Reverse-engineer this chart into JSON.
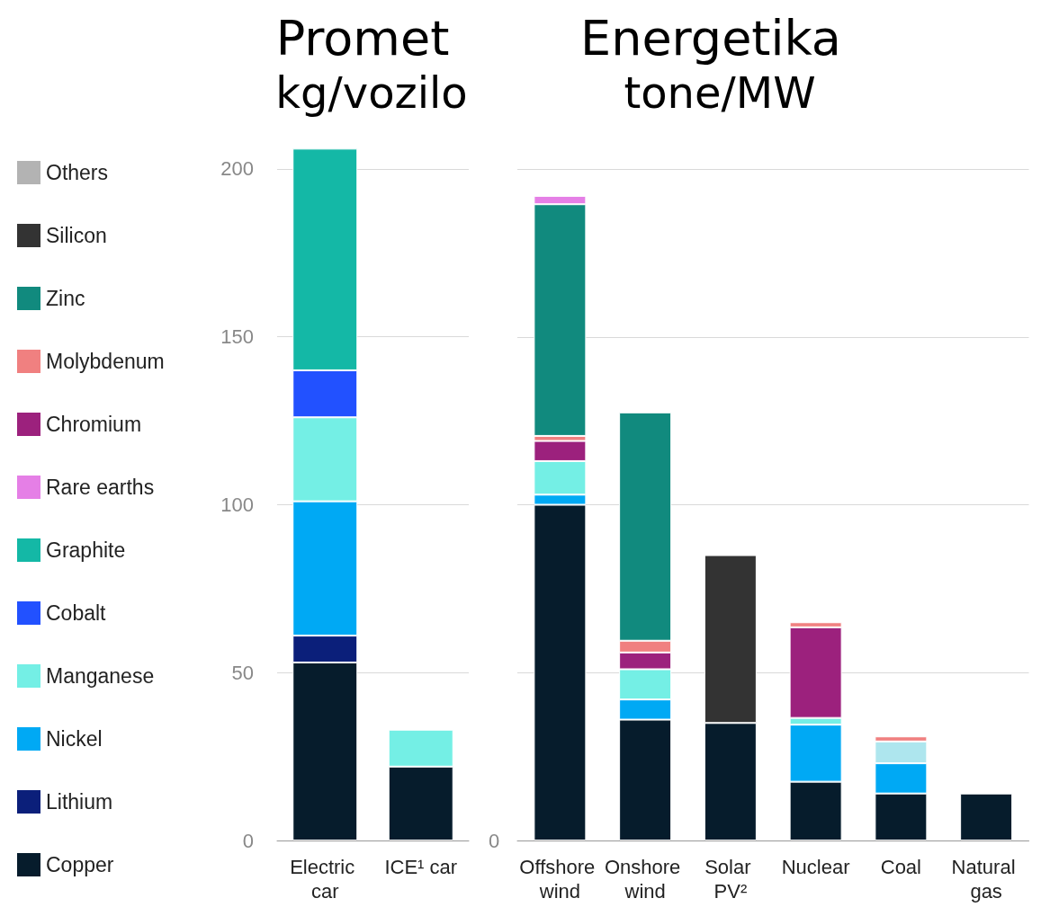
{
  "chart_data": [
    {
      "type": "bar",
      "title": "Promet",
      "subtitle": "kg/vozilo",
      "stacked": true,
      "legend": "left",
      "grid": "y",
      "categories": [
        "Electric car",
        "ICE¹ car"
      ],
      "ylim": [
        0,
        206
      ],
      "yticks": [
        0,
        50,
        100,
        150,
        200
      ],
      "series": [
        {
          "name": "Copper",
          "color": "#061c2c",
          "values": [
            53,
            22
          ]
        },
        {
          "name": "Lithium",
          "color": "#0b1f7a",
          "values": [
            8,
            null
          ]
        },
        {
          "name": "Nickel",
          "color": "#00a9f4",
          "values": [
            40,
            null
          ]
        },
        {
          "name": "Manganese",
          "color": "#74efe5",
          "values": [
            25,
            11
          ]
        },
        {
          "name": "Cobalt",
          "color": "#2251ff",
          "values": [
            14,
            null
          ]
        },
        {
          "name": "Graphite",
          "color": "#14b8a6",
          "values": [
            66,
            null
          ]
        },
        {
          "name": "Rare earths",
          "color": "#e57fe6",
          "values": [
            null,
            null
          ]
        },
        {
          "name": "Chromium",
          "color": "#9c217d",
          "values": [
            null,
            null
          ]
        },
        {
          "name": "Molybdenum",
          "color": "#f08080",
          "values": [
            null,
            null
          ]
        },
        {
          "name": "Zinc",
          "color": "#118a7e",
          "values": [
            null,
            null
          ]
        },
        {
          "name": "Silicon",
          "color": "#333333",
          "values": [
            null,
            null
          ]
        },
        {
          "name": "Others",
          "color": "#b3b3b3",
          "values": [
            null,
            null
          ]
        }
      ]
    },
    {
      "type": "bar",
      "title": "Energetika",
      "subtitle": "tone/MW",
      "stacked": true,
      "grid": "y",
      "categories": [
        "Offshore wind",
        "Onshore wind",
        "Solar PV²",
        "Nuclear",
        "Coal",
        "Natural gas"
      ],
      "ylim": [
        0,
        200
      ],
      "yticks": [
        0,
        50,
        100,
        150,
        200
      ],
      "tick_labels": "x",
      "annotations": [
        "0"
      ],
      "series": [
        {
          "color": "#061c2c",
          "values": [
            100,
            36,
            35,
            17.5,
            14,
            14
          ]
        },
        {
          "color": "#00a9f4",
          "values": [
            3,
            6,
            null,
            17,
            9,
            null
          ]
        },
        {
          "colors": [
            "#74efe5",
            "#74efe5",
            null,
            "#74efe5",
            "#aee6ee",
            null
          ],
          "values": [
            10,
            9,
            null,
            2,
            6.5,
            null
          ]
        },
        {
          "color": "#9c217d",
          "values": [
            6,
            5,
            null,
            27,
            null,
            null
          ]
        },
        {
          "color": "#f08080",
          "values": [
            1.5,
            3.5,
            null,
            1.5,
            1.5,
            null
          ]
        },
        {
          "color": "#118a7e",
          "values": [
            69,
            68,
            null,
            null,
            null,
            null
          ]
        },
        {
          "color": "#e57fe6",
          "values": [
            2.5,
            null,
            null,
            null,
            null,
            null
          ]
        },
        {
          "color": "#333333",
          "values": [
            null,
            null,
            50,
            null,
            null,
            null
          ]
        }
      ]
    }
  ]
}
